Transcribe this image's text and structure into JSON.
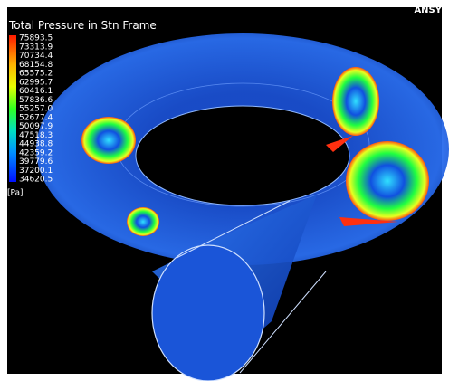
{
  "title": "Total Pressure in Stn Frame",
  "logo": "ANSY",
  "legend": {
    "labels": [
      "75893.5",
      "73313.9",
      "70734.4",
      "68154.8",
      "65575.2",
      "62995.7",
      "60416.1",
      "57836.6",
      "55257.0",
      "52677.4",
      "50097.9",
      "47518.3",
      "44938.8",
      "42359.2",
      "39779.6",
      "37200.1",
      "34620.5"
    ],
    "unit": "[Pa]"
  }
}
